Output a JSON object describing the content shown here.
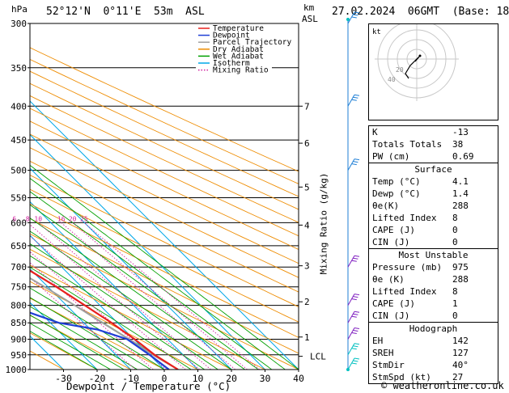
{
  "header": {
    "hpa_label": "hPa",
    "location": "52°12'N  0°11'E  53m  ASL",
    "km_label": "km",
    "asl_label": "ASL",
    "datetime": "27.02.2024  06GMT  (Base: 18)"
  },
  "chart_data": {
    "type": "skew-t",
    "pressure_levels": [
      300,
      350,
      400,
      450,
      500,
      550,
      600,
      650,
      700,
      750,
      800,
      850,
      900,
      950,
      1000
    ],
    "x_ticks": [
      -30,
      -20,
      -10,
      0,
      10,
      20,
      30,
      40
    ],
    "xlabel": "Dewpoint / Temperature (°C)",
    "y_right_label": "Mixing Ratio (g/kg)",
    "km_ticks": [
      {
        "km": "7",
        "p": 400
      },
      {
        "km": "6",
        "p": 455
      },
      {
        "km": "5",
        "p": 530
      },
      {
        "km": "4",
        "p": 605
      },
      {
        "km": "3",
        "p": 697
      },
      {
        "km": "2",
        "p": 790
      },
      {
        "km": "1",
        "p": 893
      }
    ],
    "lcl_label": "LCL",
    "lcl_pressure": 955,
    "mixing_ratio_labels": [
      "2",
      "3",
      "4",
      "6",
      "8",
      "10",
      "16",
      "20",
      "25"
    ],
    "mixing_ratio_values": [
      2,
      3,
      4,
      6,
      8,
      10,
      16,
      20,
      25
    ],
    "legend": [
      {
        "name": "Temperature",
        "color": "#e8201e"
      },
      {
        "name": "Dewpoint",
        "color": "#1f3fd6"
      },
      {
        "name": "Parcel Trajectory",
        "color": "#a0a0a0"
      },
      {
        "name": "Dry Adiabat",
        "color": "#ee8c00"
      },
      {
        "name": "Wet Adiabat",
        "color": "#00a000"
      },
      {
        "name": "Isotherm",
        "color": "#00a8e8"
      },
      {
        "name": "Mixing Ratio",
        "color": "#d0209e"
      }
    ],
    "temperature": [
      {
        "p": 1000,
        "t": 4.1
      },
      {
        "p": 950,
        "t": 1.5
      },
      {
        "p": 900,
        "t": 0.2
      },
      {
        "p": 850,
        "t": -1.8
      },
      {
        "p": 800,
        "t": -4.5
      },
      {
        "p": 750,
        "t": -7.5
      },
      {
        "p": 700,
        "t": -11.2
      },
      {
        "p": 650,
        "t": -15.0
      },
      {
        "p": 600,
        "t": -19.5
      },
      {
        "p": 550,
        "t": -23.5
      },
      {
        "p": 500,
        "t": -28.5
      },
      {
        "p": 450,
        "t": -33.5
      },
      {
        "p": 400,
        "t": -39.5
      },
      {
        "p": 350,
        "t": -46.5
      },
      {
        "p": 300,
        "t": -53.5
      }
    ],
    "dewpoint": [
      {
        "p": 1000,
        "t": 1.4
      },
      {
        "p": 950,
        "t": 0.0
      },
      {
        "p": 900,
        "t": -2.0
      },
      {
        "p": 870,
        "t": -8.0
      },
      {
        "p": 850,
        "t": -17.5
      },
      {
        "p": 800,
        "t": -27.0
      },
      {
        "p": 750,
        "t": -35.0
      },
      {
        "p": 700,
        "t": -38.0
      },
      {
        "p": 650,
        "t": -34.0
      },
      {
        "p": 600,
        "t": -24.5
      },
      {
        "p": 550,
        "t": -27.0
      },
      {
        "p": 500,
        "t": -33.0
      },
      {
        "p": 450,
        "t": -39.0
      },
      {
        "p": 400,
        "t": -45.0
      },
      {
        "p": 350,
        "t": -53.5
      },
      {
        "p": 300,
        "t": -63.0
      }
    ],
    "parcel": [
      {
        "p": 1000,
        "t": 4.1
      },
      {
        "p": 955,
        "t": 1.3
      },
      {
        "p": 900,
        "t": -1.5
      },
      {
        "p": 850,
        "t": -4.5
      },
      {
        "p": 800,
        "t": -7.5
      },
      {
        "p": 750,
        "t": -11.0
      },
      {
        "p": 700,
        "t": -15.0
      },
      {
        "p": 650,
        "t": -19.5
      },
      {
        "p": 600,
        "t": -24.5
      },
      {
        "p": 550,
        "t": -30.0
      },
      {
        "p": 500,
        "t": -36.5
      },
      {
        "p": 450,
        "t": -43.5
      },
      {
        "p": 400,
        "t": -51.5
      },
      {
        "p": 350,
        "t": -60.5
      },
      {
        "p": 300,
        "t": -70.5
      }
    ],
    "wind_barbs_pressure": [
      300,
      400,
      500,
      700,
      800,
      850,
      900,
      950,
      1000
    ]
  },
  "hodograph": {
    "kt_label": "kt",
    "ring_labels": [
      "20",
      "40"
    ]
  },
  "indices": {
    "rows": [
      {
        "label": "K",
        "value": "-13"
      },
      {
        "label": "Totals Totals",
        "value": "38"
      },
      {
        "label": "PW (cm)",
        "value": "0.69"
      }
    ]
  },
  "surface": {
    "title": "Surface",
    "rows": [
      {
        "label": "Temp (°C)",
        "value": "4.1"
      },
      {
        "label": "Dewp (°C)",
        "value": "1.4"
      },
      {
        "label": "θe(K)",
        "value": "288"
      },
      {
        "label": "Lifted Index",
        "value": "8"
      },
      {
        "label": "CAPE (J)",
        "value": "0"
      },
      {
        "label": "CIN (J)",
        "value": "0"
      }
    ]
  },
  "most_unstable": {
    "title": "Most Unstable",
    "rows": [
      {
        "label": "Pressure (mb)",
        "value": "975"
      },
      {
        "label": "θe (K)",
        "value": "288"
      },
      {
        "label": "Lifted Index",
        "value": "8"
      },
      {
        "label": "CAPE (J)",
        "value": "1"
      },
      {
        "label": "CIN (J)",
        "value": "0"
      }
    ]
  },
  "hodograph_table": {
    "title": "Hodograph",
    "rows": [
      {
        "label": "EH",
        "value": "142"
      },
      {
        "label": "SREH",
        "value": "127"
      },
      {
        "label": "StmDir",
        "value": "40°"
      },
      {
        "label": "StmSpd (kt)",
        "value": "27"
      }
    ]
  },
  "footer": {
    "copyright": "© weatheronline.co.uk"
  }
}
